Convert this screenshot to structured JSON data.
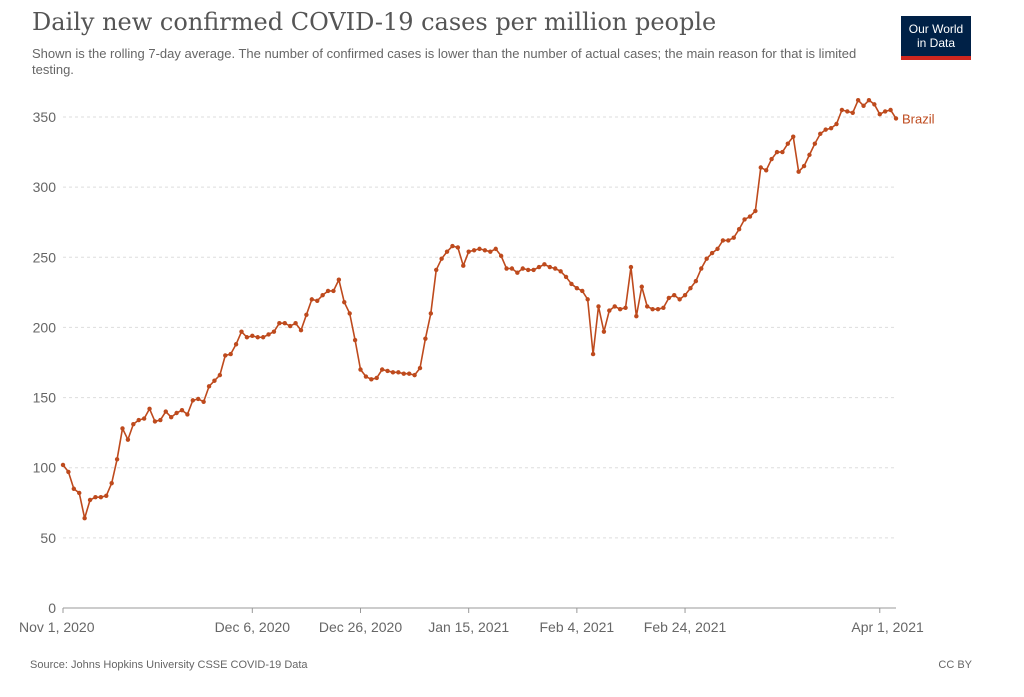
{
  "header": {
    "title": "Daily new confirmed COVID-19 cases per million people",
    "subtitle": "Shown is the rolling 7-day average. The number of confirmed cases is lower than the number of actual cases; the main reason for that is limited testing."
  },
  "logo": {
    "line1": "Our World",
    "line2": "in Data",
    "bg_color": "#002147",
    "bar_color": "#ce261e"
  },
  "footer": {
    "source": "Source: Johns Hopkins University CSSE COVID-19 Data",
    "license": "CC BY"
  },
  "colors": {
    "series": "#be4a1d",
    "grid": "#dddddd",
    "text": "#666666"
  },
  "chart_data": {
    "type": "line",
    "title": "Daily new confirmed COVID-19 cases per million people",
    "xlabel": "",
    "ylabel": "",
    "ylim": [
      0,
      350
    ],
    "y_ticks": [
      0,
      50,
      100,
      150,
      200,
      250,
      300,
      350
    ],
    "x_ticks": [
      "Nov 1, 2020",
      "Dec 6, 2020",
      "Dec 26, 2020",
      "Jan 15, 2021",
      "Feb 4, 2021",
      "Feb 24, 2021",
      "Apr 1, 2021"
    ],
    "x_tick_days": [
      0,
      35,
      55,
      75,
      95,
      115,
      151
    ],
    "grid": true,
    "legend": "inline label at line end",
    "series": [
      {
        "name": "Brazil",
        "color": "#be4a1d",
        "values": [
          102,
          97,
          85,
          82,
          64,
          77,
          79,
          79,
          80,
          89,
          106,
          128,
          120,
          131,
          134,
          135,
          142,
          133,
          134,
          140,
          136,
          139,
          141,
          138,
          148,
          149,
          147,
          158,
          162,
          166,
          180,
          181,
          188,
          197,
          193,
          194,
          193,
          193,
          195,
          197,
          203,
          203,
          201,
          203,
          198,
          209,
          220,
          219,
          223,
          226,
          226,
          234,
          218,
          210,
          191,
          170,
          165,
          163,
          164,
          170,
          169,
          168,
          168,
          167,
          167,
          166,
          171,
          192,
          210,
          241,
          249,
          254,
          258,
          257,
          244,
          254,
          255,
          256,
          255,
          254,
          256,
          251,
          242,
          242,
          239,
          242,
          241,
          241,
          243,
          245,
          243,
          242,
          240,
          236,
          231,
          228,
          226,
          220,
          181,
          215,
          197,
          212,
          215,
          213,
          214,
          243,
          208,
          229,
          215,
          213,
          213,
          214,
          221,
          223,
          220,
          223,
          228,
          233,
          242,
          249,
          253,
          256,
          262,
          262,
          264,
          270,
          277,
          279,
          283,
          314,
          312,
          320,
          325,
          325,
          331,
          336,
          311,
          315,
          323,
          331,
          338,
          341,
          342,
          345,
          355,
          354,
          353,
          362,
          358,
          362,
          359,
          352,
          354,
          355,
          349
        ]
      }
    ]
  }
}
